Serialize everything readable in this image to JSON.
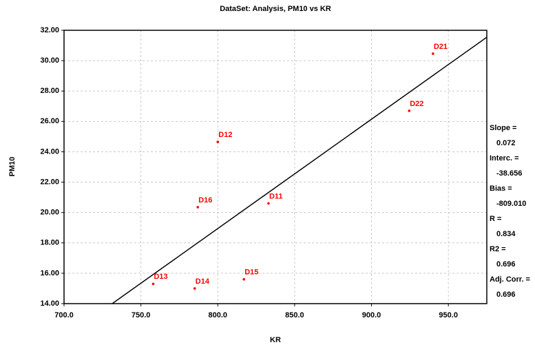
{
  "chart_data": {
    "type": "scatter",
    "title": "DataSet: Analysis, PM10 vs KR",
    "xlabel": "KR",
    "ylabel": "PM10",
    "x": [
      940,
      924.5,
      800,
      787,
      833,
      817,
      785,
      758
    ],
    "values": [
      30.46,
      26.7,
      24.65,
      20.35,
      20.6,
      15.6,
      15.0,
      15.3
    ],
    "point_labels": [
      "D21",
      "D22",
      "D12",
      "D16",
      "D11",
      "D15",
      "D14",
      "D13"
    ],
    "color": "#ff0000",
    "line_color": "#000000",
    "xlim": [
      700,
      975
    ],
    "ylim": [
      14,
      32
    ],
    "xticks": [
      {
        "value": 700,
        "label": "700.0"
      },
      {
        "value": 750,
        "label": "750.0"
      },
      {
        "value": 800,
        "label": "800.0"
      },
      {
        "value": 850,
        "label": "850.0"
      },
      {
        "value": 900,
        "label": "900.0"
      },
      {
        "value": 950,
        "label": "950.0"
      }
    ],
    "yticks": [
      {
        "value": 14,
        "label": "14.00"
      },
      {
        "value": 16,
        "label": "16.00"
      },
      {
        "value": 18,
        "label": "18.00"
      },
      {
        "value": 20,
        "label": "20.00"
      },
      {
        "value": 22,
        "label": "22.00"
      },
      {
        "value": 24,
        "label": "24.00"
      },
      {
        "value": 26,
        "label": "26.00"
      },
      {
        "value": 28,
        "label": "28.00"
      },
      {
        "value": 30,
        "label": "30.00"
      },
      {
        "value": 32,
        "label": "32.00"
      }
    ],
    "grid": true,
    "stats": [
      {
        "label": "Slope =",
        "value": 0.072
      },
      {
        "label": "Interc. =",
        "value": -38.656
      },
      {
        "label": "Bias =",
        "value": -809.01,
        "value_label": "-809.010"
      },
      {
        "label": "R =",
        "value": 0.834
      },
      {
        "label": "R2 =",
        "value": 0.696
      },
      {
        "label": "Adj. Corr. =",
        "value": 0.696
      }
    ]
  }
}
